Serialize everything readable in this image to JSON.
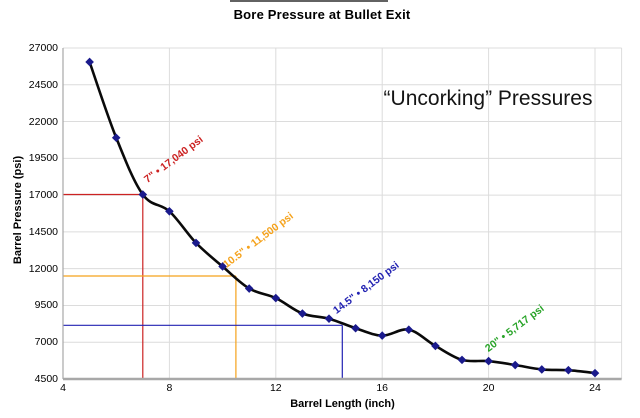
{
  "chart": {
    "title": "Bore Pressure at Bullet Exit",
    "overlay_text": "“Uncorking” Pressures",
    "xlabel": "Barrel Length (inch)",
    "ylabel": "Barrel Pressure (psi)"
  },
  "chart_data": {
    "type": "line",
    "title": "Bore Pressure at Bullet Exit",
    "xlabel": "Barrel Length (inch)",
    "ylabel": "Barrel Pressure (psi)",
    "x": [
      5,
      6,
      7,
      8,
      9,
      10,
      11,
      12,
      13,
      14,
      15,
      16,
      17,
      18,
      19,
      20,
      21,
      22,
      23,
      24
    ],
    "values": [
      26050,
      20900,
      17040,
      15900,
      13750,
      12150,
      10650,
      10000,
      8950,
      8600,
      7950,
      7450,
      7850,
      6750,
      5800,
      5717,
      5450,
      5150,
      5100,
      4900
    ],
    "xlim": [
      4,
      25
    ],
    "ylim": [
      4500,
      27000
    ],
    "x_ticks": [
      4,
      8,
      12,
      16,
      20,
      24
    ],
    "y_ticks": [
      4500,
      7000,
      9500,
      12000,
      14500,
      17000,
      19500,
      22000,
      24500,
      27000
    ],
    "grid": true,
    "legend": "none",
    "line_color": "#0a0a0a",
    "marker_color": "#1a1a8c",
    "grid_color": "#dcdcdc",
    "axis_color": "#a8a8a8",
    "annotation_note": "“Uncorking” Pressures",
    "annotations": [
      {
        "x": 7,
        "y": 17040,
        "label": "7\" • 17,040 psi",
        "color": "#cc2222",
        "lines": true
      },
      {
        "x": 10.5,
        "y": 11500,
        "label": "10.5\" • 11,500 psi",
        "color": "#f5a21b",
        "lines": true
      },
      {
        "x": 14.5,
        "y": 8150,
        "label": "14.5\" • 8,150 psi",
        "color": "#2222b2",
        "lines": true
      },
      {
        "x": 20,
        "y": 5717,
        "label": "20\" • 5,717 psi",
        "color": "#28a428",
        "lines": false
      }
    ]
  }
}
